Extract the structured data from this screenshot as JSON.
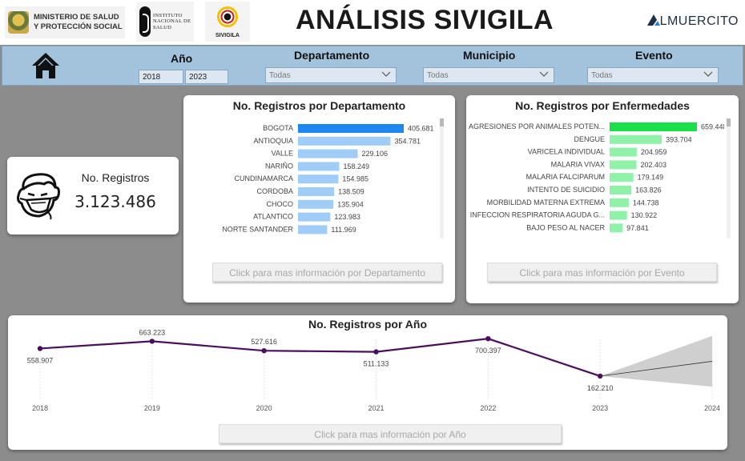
{
  "header": {
    "title": "ANÁLISIS SIVIGILA",
    "logos": {
      "ministerio": "MINISTERIO DE SALUD\nY PROTECCIÓN SOCIAL",
      "instituto": "INSTITUTO\nNACIONAL DE\nSALUD",
      "sivigila": "SIVIGILA"
    },
    "brand": "LMUERCITO"
  },
  "filters": {
    "home_icon": "home-icon",
    "year": {
      "label": "Año",
      "from": "2018",
      "to": "2023"
    },
    "departamento": {
      "label": "Departamento",
      "value": "Todas"
    },
    "municipio": {
      "label": "Municipio",
      "value": "Todas"
    },
    "evento": {
      "label": "Evento",
      "value": "Todas"
    }
  },
  "kpi": {
    "icon": "sick-face-mask-icon",
    "label": "No. Registros",
    "value": "3.123.486"
  },
  "dept_panel": {
    "title": "No. Registros por Departamento",
    "button": "Click para mas información por Departamento",
    "bar_color": "#1e88f0",
    "bar_color_light": "#9fcdf7"
  },
  "disease_panel": {
    "title": "No. Registros por Enfermedades",
    "button": "Click para mas información por Evento",
    "bar_color": "#19e04a",
    "bar_color_light": "#90f2a8"
  },
  "year_panel": {
    "title": "No. Registros por Año",
    "button": "Click para mas información por Año",
    "line_color": "#4b0e5e"
  },
  "chart_data": [
    {
      "type": "bar",
      "orientation": "horizontal",
      "title": "No. Registros por Departamento",
      "categories": [
        "BOGOTA",
        "ANTIOQUIA",
        "VALLE",
        "NARIÑO",
        "CUNDINAMARCA",
        "CORDOBA",
        "CHOCO",
        "ATLANTICO",
        "NORTE SANTANDER"
      ],
      "values": [
        405681,
        354781,
        229106,
        158249,
        154985,
        138509,
        135904,
        123983,
        111969
      ],
      "labels": [
        "405.681",
        "354.781",
        "229.106",
        "158.249",
        "154.985",
        "138.509",
        "135.904",
        "123.983",
        "111.969"
      ],
      "xlim": [
        0,
        405681
      ]
    },
    {
      "type": "bar",
      "orientation": "horizontal",
      "title": "No. Registros por Enfermedades",
      "categories": [
        "AGRESIONES POR ANIMALES POTEN...",
        "DENGUE",
        "VARICELA INDIVIDUAL",
        "MALARIA VIVAX",
        "MALARIA FALCIPARUM",
        "INTENTO DE SUICIDIO",
        "MORBILIDAD MATERNA EXTREMA",
        "INFECCION RESPIRATORIA AGUDA G...",
        "BAJO PESO AL NACER"
      ],
      "values": [
        659448,
        393704,
        204959,
        202403,
        179149,
        163826,
        144738,
        130922,
        97841
      ],
      "labels": [
        "659.448",
        "393.704",
        "204.959",
        "202.403",
        "179.149",
        "163.826",
        "144.738",
        "130.922",
        "97.841"
      ],
      "xlim": [
        0,
        659448
      ]
    },
    {
      "type": "line",
      "title": "No. Registros por Año",
      "x": [
        2018,
        2019,
        2020,
        2021,
        2022,
        2023
      ],
      "values": [
        558907,
        663223,
        527616,
        511133,
        700397,
        162210
      ],
      "labels": [
        "558.907",
        "663.223",
        "527.616",
        "511.133",
        "700.397",
        "162.210"
      ],
      "x_ticks": [
        "2018",
        "2019",
        "2020",
        "2021",
        "2022",
        "2023",
        "2024"
      ],
      "forecast": {
        "x": [
          2023,
          2024
        ],
        "values": [
          162210,
          375000
        ],
        "upper": [
          162210,
          740000
        ],
        "lower": [
          162210,
          10000
        ]
      },
      "ylim": [
        0,
        760000
      ]
    }
  ]
}
